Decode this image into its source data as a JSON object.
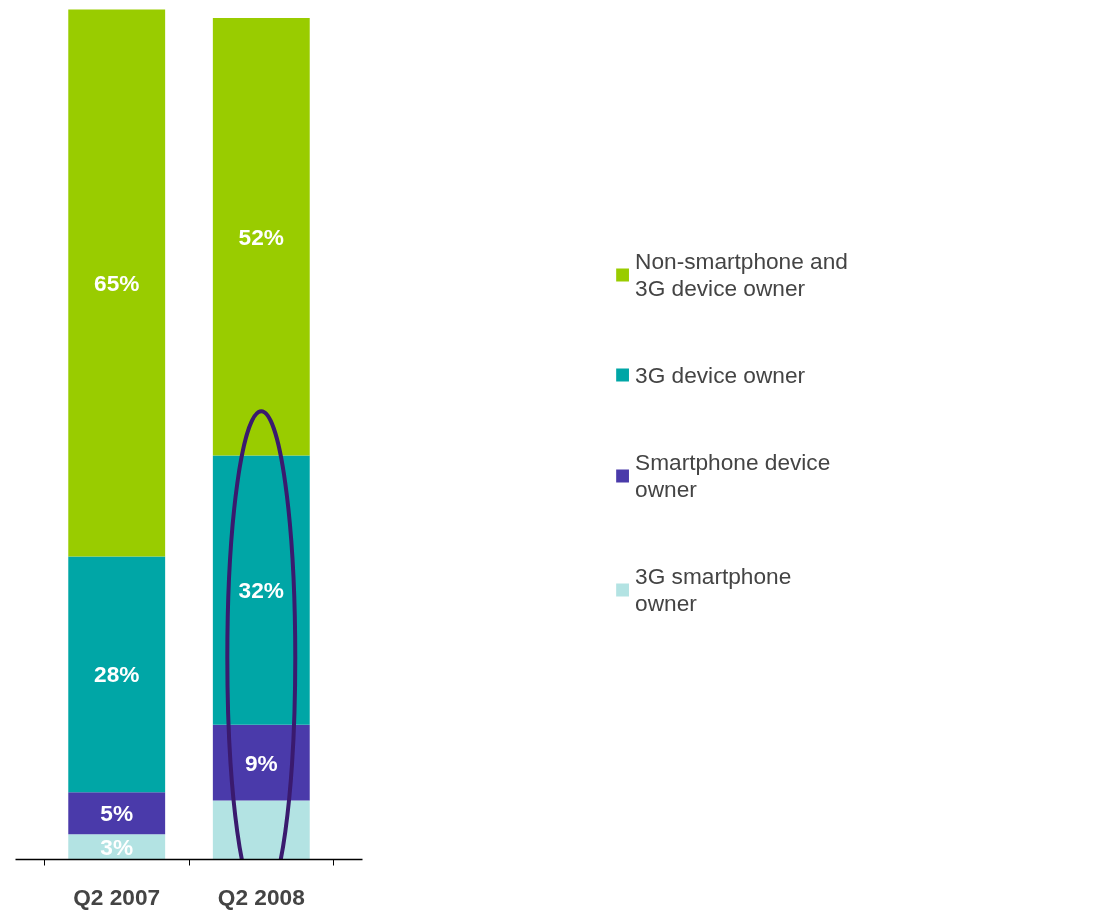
{
  "chart_data": {
    "type": "bar",
    "stacked": true,
    "categories": [
      "Q2 2007",
      "Q2 2008"
    ],
    "series": [
      {
        "name": "3G smartphone owner",
        "color": "#b3e3e3",
        "values": [
          3,
          7
        ],
        "value_labels": [
          "3%",
          null
        ]
      },
      {
        "name": "Smartphone device owner",
        "color": "#4a3aaa",
        "values": [
          5,
          9
        ],
        "value_labels": [
          "5%",
          "9%"
        ]
      },
      {
        "name": "3G device owner",
        "color": "#00a6a6",
        "values": [
          28,
          32
        ],
        "value_labels": [
          "28%",
          "32%"
        ]
      },
      {
        "name": "Non-smartphone and 3G device owner",
        "color": "#99cc00",
        "values": [
          65,
          52
        ],
        "value_labels": [
          "65%",
          "52%"
        ]
      }
    ],
    "legend": "right"
  }
}
